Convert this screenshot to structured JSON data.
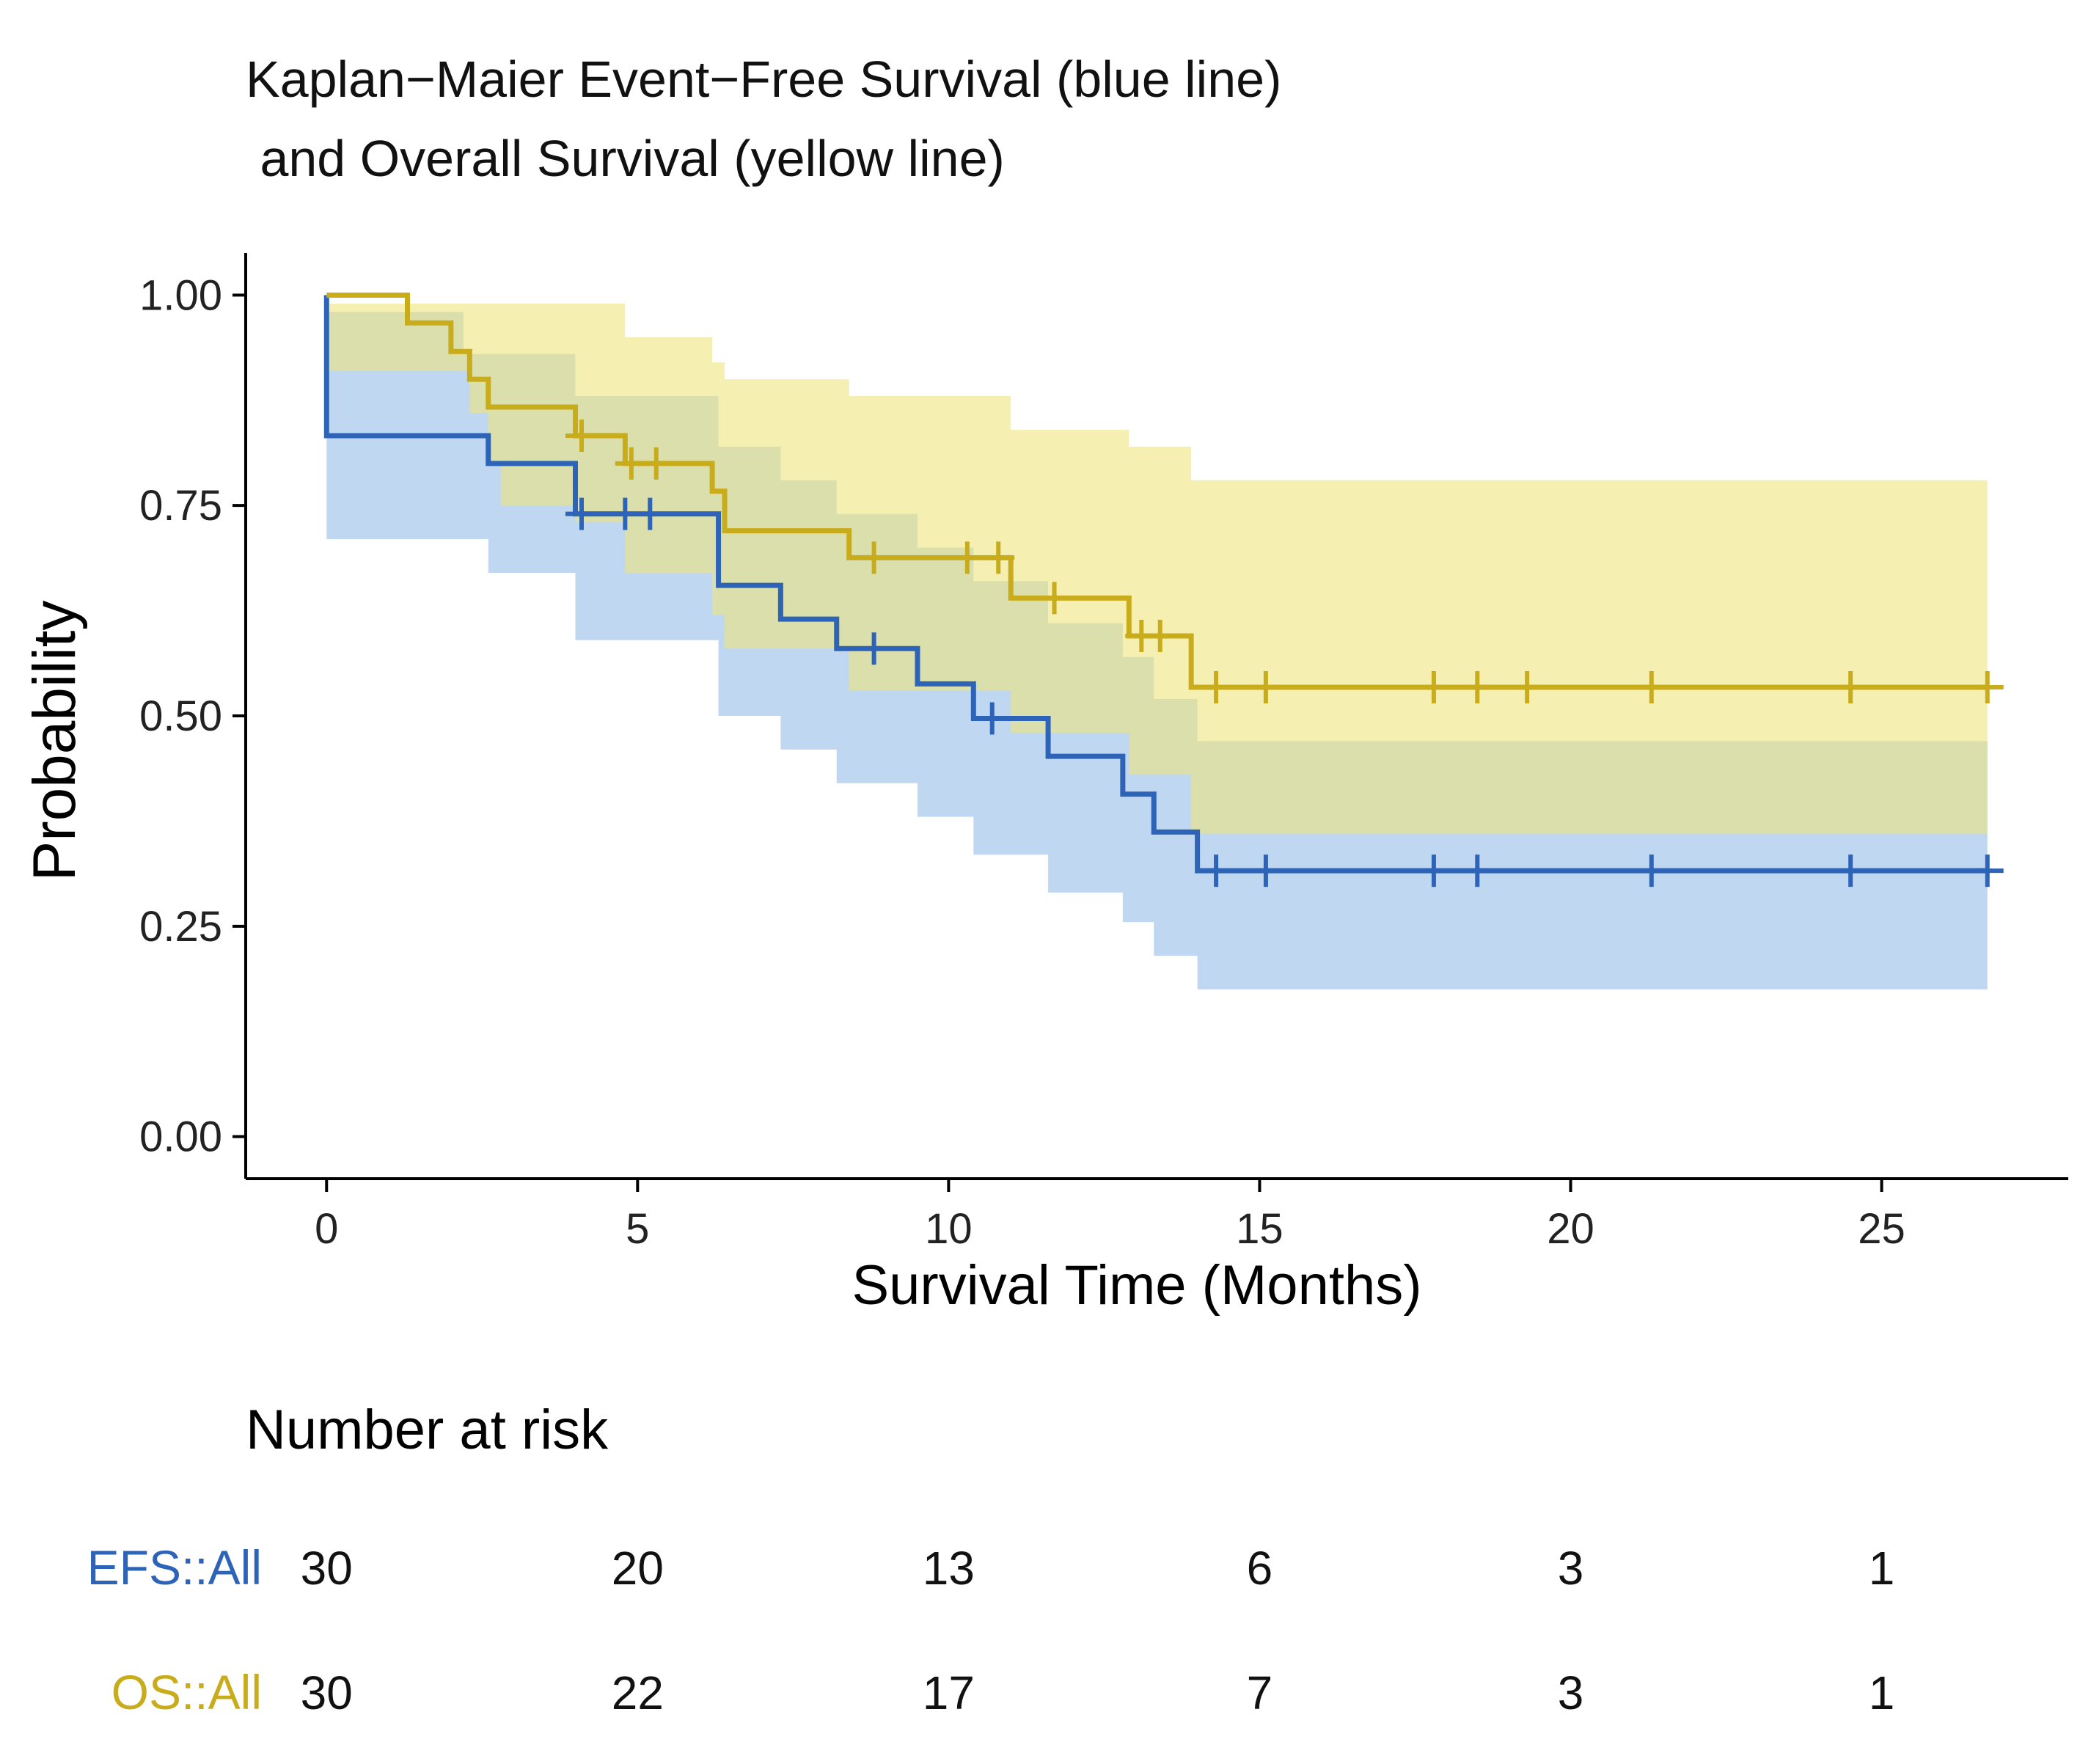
{
  "chart_data": {
    "type": "line",
    "subtype": "kaplan-meier",
    "title_lines": [
      "Kaplan−Maier Event−Free Survival (blue line)",
      " and Overall Survival (yellow line)"
    ],
    "xlabel": "Survival Time (Months)",
    "ylabel": "Probability",
    "xlim": [
      -1.3,
      28
    ],
    "ylim": [
      -0.05,
      1.05
    ],
    "x_ticks": [
      0,
      5,
      10,
      15,
      20,
      25
    ],
    "x_tick_labels": [
      "0",
      "5",
      "10",
      "15",
      "20",
      "25"
    ],
    "y_ticks": [
      0,
      0.25,
      0.5,
      0.75,
      1.0
    ],
    "y_tick_labels": [
      "0.00",
      "0.25",
      "0.50",
      "0.75",
      "1.00"
    ],
    "grid": false,
    "series": [
      {
        "name": "EFS::All",
        "color": "#2e64b8",
        "band_color": "#a8c8ec",
        "steps": [
          [
            0,
            1.0
          ],
          [
            0,
            0.833
          ],
          [
            2.2,
            0.833
          ],
          [
            2.6,
            0.8
          ],
          [
            4.0,
            0.74
          ],
          [
            6.3,
            0.655
          ],
          [
            7.3,
            0.615
          ],
          [
            8.2,
            0.58
          ],
          [
            9.5,
            0.538
          ],
          [
            10.4,
            0.497
          ],
          [
            11.6,
            0.452
          ],
          [
            12.8,
            0.407
          ],
          [
            13.3,
            0.362
          ],
          [
            14.0,
            0.316
          ],
          [
            26.7,
            0.316
          ]
        ],
        "ci_lower": [
          [
            0,
            0.71
          ],
          [
            2.6,
            0.67
          ],
          [
            4.0,
            0.59
          ],
          [
            6.3,
            0.5
          ],
          [
            7.3,
            0.46
          ],
          [
            8.2,
            0.42
          ],
          [
            9.5,
            0.38
          ],
          [
            10.4,
            0.335
          ],
          [
            11.6,
            0.29
          ],
          [
            12.8,
            0.255
          ],
          [
            13.3,
            0.215
          ],
          [
            14.0,
            0.175
          ],
          [
            26.7,
            0.175
          ]
        ],
        "ci_upper": [
          [
            0,
            0.98
          ],
          [
            1.3,
            0.98
          ],
          [
            2.2,
            0.93
          ],
          [
            2.6,
            0.93
          ],
          [
            4.0,
            0.88
          ],
          [
            6.3,
            0.82
          ],
          [
            7.3,
            0.78
          ],
          [
            8.2,
            0.74
          ],
          [
            9.5,
            0.7
          ],
          [
            10.4,
            0.66
          ],
          [
            11.6,
            0.61
          ],
          [
            12.8,
            0.57
          ],
          [
            13.3,
            0.52
          ],
          [
            14.0,
            0.47
          ],
          [
            26.7,
            0.47
          ]
        ],
        "censor_times": [
          4.1,
          4.8,
          5.2,
          8.8,
          10.7,
          14.3,
          15.1,
          17.8,
          18.5,
          21.3,
          24.5,
          26.7
        ]
      },
      {
        "name": "OS::All",
        "color": "#c8ac1c",
        "band_color": "#ede57a",
        "steps": [
          [
            0,
            1.0
          ],
          [
            1.3,
            0.967
          ],
          [
            2.0,
            0.933
          ],
          [
            2.3,
            0.9
          ],
          [
            2.6,
            0.867
          ],
          [
            4.0,
            0.833
          ],
          [
            4.8,
            0.8
          ],
          [
            6.2,
            0.767
          ],
          [
            6.4,
            0.72
          ],
          [
            8.4,
            0.688
          ],
          [
            11.0,
            0.64
          ],
          [
            12.9,
            0.595
          ],
          [
            13.9,
            0.534
          ],
          [
            26.7,
            0.534
          ]
        ],
        "ci_lower": [
          [
            0,
            0.91
          ],
          [
            1.3,
            0.91
          ],
          [
            2.3,
            0.86
          ],
          [
            2.6,
            0.8
          ],
          [
            2.8,
            0.75
          ],
          [
            4.0,
            0.73
          ],
          [
            4.8,
            0.67
          ],
          [
            6.2,
            0.62
          ],
          [
            6.4,
            0.58
          ],
          [
            8.4,
            0.53
          ],
          [
            11.0,
            0.48
          ],
          [
            12.9,
            0.43
          ],
          [
            13.9,
            0.36
          ],
          [
            26.7,
            0.36
          ]
        ],
        "ci_upper": [
          [
            0,
            0.99
          ],
          [
            4.0,
            0.99
          ],
          [
            4.8,
            0.95
          ],
          [
            6.2,
            0.92
          ],
          [
            6.4,
            0.9
          ],
          [
            8.4,
            0.88
          ],
          [
            11.0,
            0.84
          ],
          [
            12.9,
            0.82
          ],
          [
            13.9,
            0.78
          ],
          [
            26.7,
            0.78
          ]
        ],
        "censor_times": [
          4.1,
          4.9,
          5.3,
          8.8,
          10.3,
          10.8,
          11.7,
          13.1,
          13.4,
          14.3,
          15.1,
          17.8,
          18.5,
          19.3,
          21.3,
          24.5,
          26.7
        ]
      }
    ],
    "risk_table": {
      "title": "Number at risk",
      "times": [
        0,
        5,
        10,
        15,
        20,
        25
      ],
      "rows": [
        {
          "label": "EFS::All",
          "color": "#2e64b8",
          "values": [
            "30",
            "20",
            "13",
            "6",
            "3",
            "1"
          ]
        },
        {
          "label": "OS::All",
          "color": "#c8ac1c",
          "values": [
            "30",
            "22",
            "17",
            "7",
            "3",
            "1"
          ]
        }
      ]
    }
  }
}
